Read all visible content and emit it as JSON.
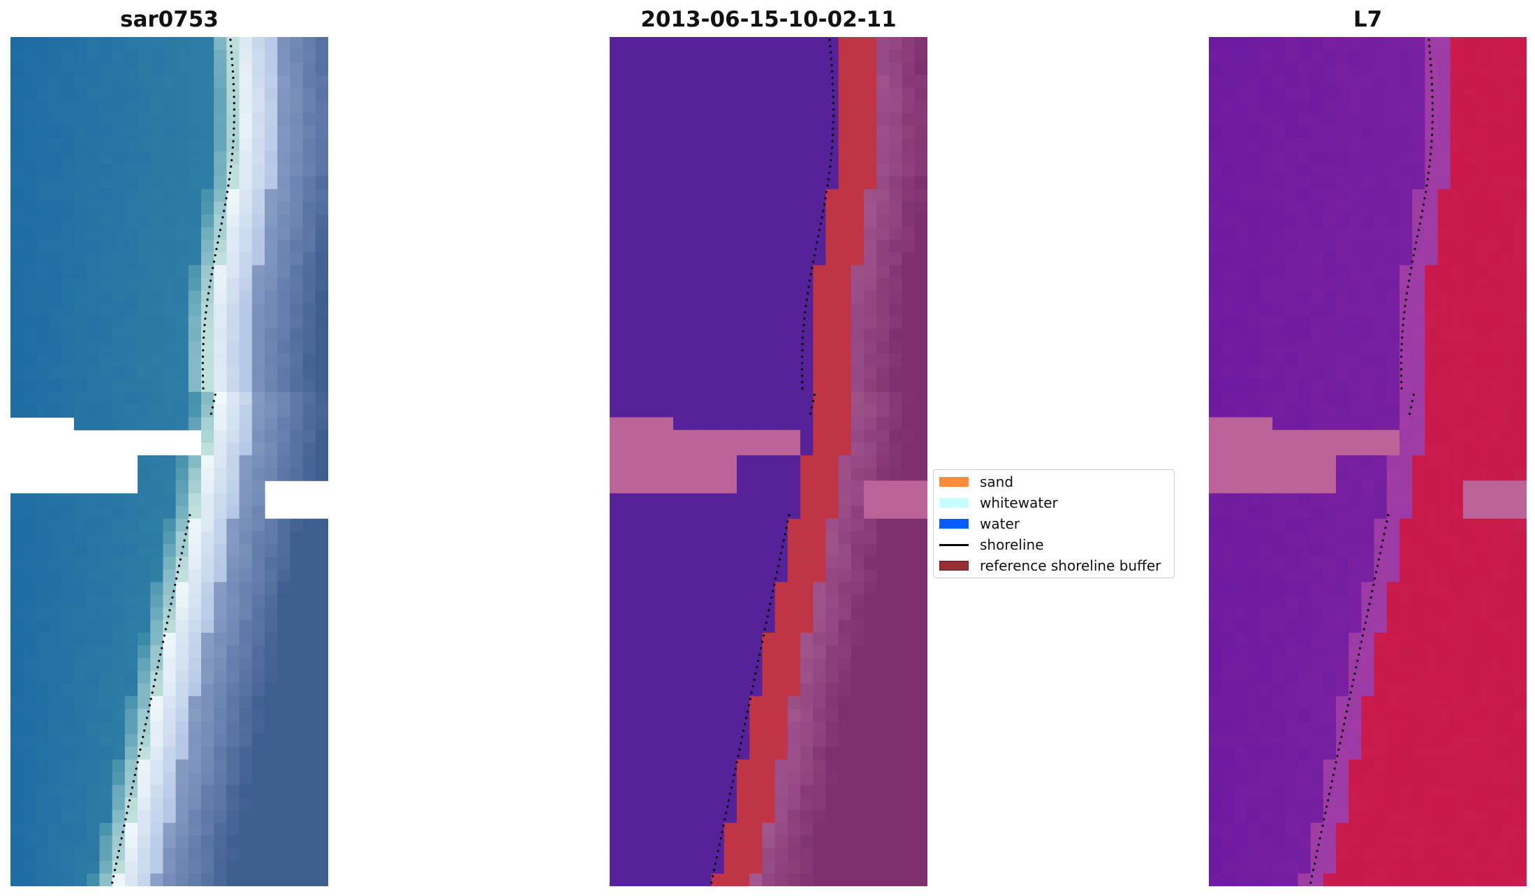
{
  "titles": {
    "left": "sar0753",
    "center": "2013-06-15-10-02-11",
    "right": "L7"
  },
  "legend": {
    "items": [
      {
        "label": "sand",
        "color": "#ff8c3c",
        "kind": "patch"
      },
      {
        "label": "whitewater",
        "color": "#c8ffff",
        "kind": "patch"
      },
      {
        "label": "water",
        "color": "#0a5aff",
        "kind": "patch"
      },
      {
        "label": "shoreline",
        "color": "#000000",
        "kind": "line"
      },
      {
        "label": "reference shoreline buffer",
        "color": "#9b2d35",
        "kind": "patch"
      }
    ]
  },
  "colors": {
    "rgb_sea": "#2a6fa8",
    "rgb_sand": "#e8f2f0",
    "class_water": "#55229a",
    "class_buffer": "#c03545",
    "class_land": "#7d2f6e",
    "nodata": "#bc6499",
    "ndwi_water": "#7a1f9e",
    "ndwi_land": "#c8194a"
  }
}
